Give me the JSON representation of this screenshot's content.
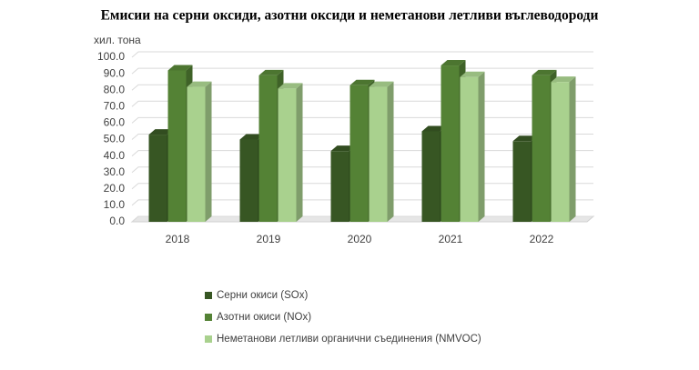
{
  "chart_data": {
    "type": "bar3d",
    "title": "Емисии на серни оксиди, азотни оксиди и неметанови летливи въглеводороди",
    "y_label": "хил. тона",
    "categories": [
      "2018",
      "2019",
      "2020",
      "2021",
      "2022"
    ],
    "series": [
      {
        "name": "Серни окиси (SOx)",
        "color": "#375623",
        "values": [
          53,
          50,
          43,
          55,
          49
        ]
      },
      {
        "name": "Азотни окиси (NOx)",
        "color": "#548235",
        "values": [
          92,
          89,
          83,
          95,
          89
        ]
      },
      {
        "name": "Неметанови летливи органични съединения  (NMVOC)",
        "color": "#a9d18e",
        "values": [
          82,
          81,
          82,
          88,
          85
        ]
      }
    ],
    "ylim": [
      0,
      100
    ],
    "yticks": [
      {
        "value": 0,
        "label": "0.0"
      },
      {
        "value": 10,
        "label": "10.0"
      },
      {
        "value": 20,
        "label": "20.0"
      },
      {
        "value": 30,
        "label": "30.0"
      },
      {
        "value": 40,
        "label": "40.0"
      },
      {
        "value": 50,
        "label": "50.0"
      },
      {
        "value": 60,
        "label": "60.0"
      },
      {
        "value": 70,
        "label": "70.0"
      },
      {
        "value": 80,
        "label": "80.0"
      },
      {
        "value": 90,
        "label": "90.0"
      },
      {
        "value": 100,
        "label": "100.0"
      }
    ],
    "grid": true,
    "legend": "bottom"
  }
}
